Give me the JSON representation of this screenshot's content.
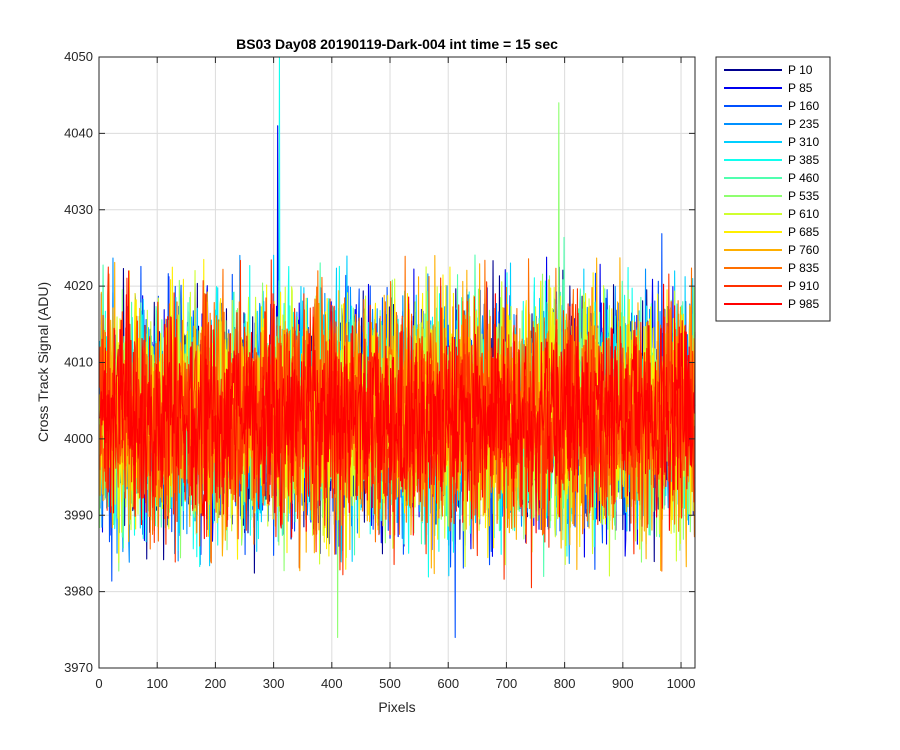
{
  "chart_data": {
    "type": "line",
    "title": "BS03 Day08 20190119-Dark-004 int time = 15 sec",
    "xlabel": "Pixels",
    "ylabel": "Cross Track Signal (ADU)",
    "xlim": [
      0,
      1024
    ],
    "ylim": [
      3970,
      4050
    ],
    "x_ticks": [
      0,
      100,
      200,
      300,
      400,
      500,
      600,
      700,
      800,
      900,
      1000
    ],
    "y_ticks": [
      3970,
      3980,
      3990,
      4000,
      4010,
      4020,
      4030,
      4040,
      4050
    ],
    "grid": true,
    "legend_position": "outside-right-top",
    "series": [
      {
        "name": "P 10",
        "color": "#00008F",
        "mean": 4003,
        "spread": 9
      },
      {
        "name": "P 85",
        "color": "#0000EF",
        "mean": 4003,
        "spread": 9
      },
      {
        "name": "P 160",
        "color": "#0050FF",
        "mean": 4003,
        "spread": 9
      },
      {
        "name": "P 235",
        "color": "#0090FF",
        "mean": 4003,
        "spread": 9
      },
      {
        "name": "P 310",
        "color": "#00CFFF",
        "mean": 4003,
        "spread": 9
      },
      {
        "name": "P 385",
        "color": "#10FFEF",
        "mean": 4003,
        "spread": 9
      },
      {
        "name": "P 460",
        "color": "#50FFAF",
        "mean": 4003,
        "spread": 9
      },
      {
        "name": "P 535",
        "color": "#8FFF70",
        "mean": 4003,
        "spread": 9
      },
      {
        "name": "P 610",
        "color": "#CFFF30",
        "mean": 4003,
        "spread": 9
      },
      {
        "name": "P 685",
        "color": "#FFEF00",
        "mean": 4003,
        "spread": 9
      },
      {
        "name": "P 760",
        "color": "#FFAF00",
        "mean": 4003,
        "spread": 9
      },
      {
        "name": "P 835",
        "color": "#FF7000",
        "mean": 4003,
        "spread": 9
      },
      {
        "name": "P 910",
        "color": "#FF3000",
        "mean": 4003,
        "spread": 9
      },
      {
        "name": "P 985",
        "color": "#FF0000",
        "mean": 4003,
        "spread": 8
      }
    ],
    "notable_peaks": [
      {
        "series": "P 385",
        "x": 310,
        "y": 4050
      },
      {
        "series": "P 85",
        "x": 307,
        "y": 4041
      },
      {
        "series": "P 535",
        "x": 790,
        "y": 4044
      },
      {
        "series": "P 535",
        "x": 410,
        "y": 3974
      },
      {
        "series": "P 160",
        "x": 612,
        "y": 3974
      }
    ]
  }
}
